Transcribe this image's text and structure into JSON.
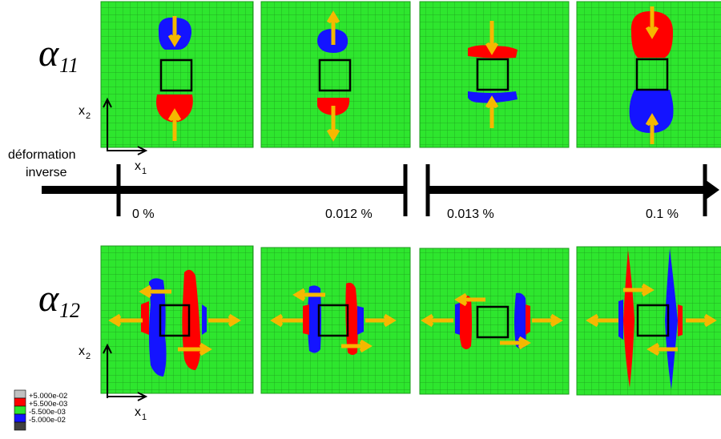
{
  "colors": {
    "grid_green": "#2ee62e",
    "grid_line": "#1c9a1c",
    "red": "#ff0000",
    "blue": "#1414ff",
    "arrow": "#f5b800",
    "axis": "#000000"
  },
  "rows": [
    {
      "symbol": "α",
      "subscript": "11"
    },
    {
      "symbol": "α",
      "subscript": "12"
    }
  ],
  "axis_labels": {
    "x2": "x",
    "x2_sub": "2",
    "x1": "x",
    "x1_sub": "1"
  },
  "timeline": {
    "caption_line1": "déformation",
    "caption_line2": "inverse",
    "ticks": [
      "0 %",
      "0.012 %",
      "0.013 %",
      "0.1 %"
    ]
  },
  "legend": {
    "entries": [
      {
        "label": "+5.000e-02",
        "color": "#c0c0c0"
      },
      {
        "label": "+5.500e-03",
        "color": "#ff0000"
      },
      {
        "label": "-5.500e-03",
        "color": "#2ee62e"
      },
      {
        "label": "-5.000e-02",
        "color": "#1414ff"
      },
      {
        "label": "",
        "color": "#404040"
      }
    ]
  }
}
